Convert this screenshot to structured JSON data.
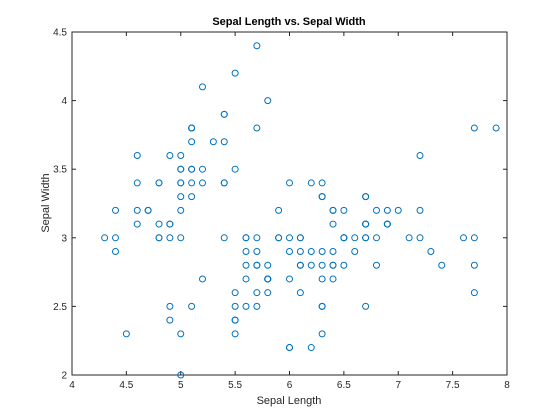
{
  "chart_data": {
    "type": "scatter",
    "title": "Sepal Length vs. Sepal Width",
    "xlabel": "Sepal Length",
    "ylabel": "Sepal Width",
    "xlim": [
      4,
      8
    ],
    "ylim": [
      2,
      4.5
    ],
    "xticks": [
      "4",
      "4.5",
      "5",
      "5.5",
      "6",
      "6.5",
      "7",
      "7.5",
      "8"
    ],
    "yticks": [
      "2",
      "2.5",
      "3",
      "3.5",
      "4",
      "4.5"
    ],
    "grid": false,
    "marker_color": "#0072BD",
    "points": [
      [
        5.1,
        3.5
      ],
      [
        4.9,
        3.0
      ],
      [
        4.7,
        3.2
      ],
      [
        4.6,
        3.1
      ],
      [
        5.0,
        3.6
      ],
      [
        5.4,
        3.9
      ],
      [
        4.6,
        3.4
      ],
      [
        5.0,
        3.4
      ],
      [
        4.4,
        2.9
      ],
      [
        4.9,
        3.1
      ],
      [
        5.4,
        3.7
      ],
      [
        4.8,
        3.4
      ],
      [
        4.8,
        3.0
      ],
      [
        4.3,
        3.0
      ],
      [
        5.8,
        4.0
      ],
      [
        5.7,
        4.4
      ],
      [
        5.4,
        3.9
      ],
      [
        5.1,
        3.5
      ],
      [
        5.7,
        3.8
      ],
      [
        5.1,
        3.8
      ],
      [
        5.4,
        3.4
      ],
      [
        5.1,
        3.7
      ],
      [
        4.6,
        3.6
      ],
      [
        5.1,
        3.3
      ],
      [
        4.8,
        3.4
      ],
      [
        5.0,
        3.0
      ],
      [
        5.0,
        3.4
      ],
      [
        5.2,
        3.5
      ],
      [
        5.2,
        3.4
      ],
      [
        4.7,
        3.2
      ],
      [
        4.8,
        3.1
      ],
      [
        5.4,
        3.4
      ],
      [
        5.2,
        4.1
      ],
      [
        5.5,
        4.2
      ],
      [
        4.9,
        3.1
      ],
      [
        5.0,
        3.2
      ],
      [
        5.5,
        3.5
      ],
      [
        4.9,
        3.6
      ],
      [
        4.4,
        3.0
      ],
      [
        5.1,
        3.4
      ],
      [
        5.0,
        3.5
      ],
      [
        4.5,
        2.3
      ],
      [
        4.4,
        3.2
      ],
      [
        5.0,
        3.5
      ],
      [
        5.1,
        3.8
      ],
      [
        4.8,
        3.0
      ],
      [
        5.1,
        3.8
      ],
      [
        4.6,
        3.2
      ],
      [
        5.3,
        3.7
      ],
      [
        5.0,
        3.3
      ],
      [
        7.0,
        3.2
      ],
      [
        6.4,
        3.2
      ],
      [
        6.9,
        3.1
      ],
      [
        5.5,
        2.3
      ],
      [
        6.5,
        2.8
      ],
      [
        5.7,
        2.8
      ],
      [
        6.3,
        3.3
      ],
      [
        4.9,
        2.4
      ],
      [
        6.6,
        2.9
      ],
      [
        5.2,
        2.7
      ],
      [
        5.0,
        2.0
      ],
      [
        5.9,
        3.0
      ],
      [
        6.0,
        2.2
      ],
      [
        6.1,
        2.9
      ],
      [
        5.6,
        2.9
      ],
      [
        6.7,
        3.1
      ],
      [
        5.6,
        3.0
      ],
      [
        5.8,
        2.7
      ],
      [
        6.2,
        2.2
      ],
      [
        5.6,
        2.5
      ],
      [
        5.9,
        3.2
      ],
      [
        6.1,
        2.8
      ],
      [
        6.3,
        2.5
      ],
      [
        6.1,
        2.8
      ],
      [
        6.4,
        2.9
      ],
      [
        6.6,
        3.0
      ],
      [
        6.8,
        2.8
      ],
      [
        6.7,
        3.0
      ],
      [
        6.0,
        2.9
      ],
      [
        5.7,
        2.6
      ],
      [
        5.5,
        2.4
      ],
      [
        5.5,
        2.4
      ],
      [
        5.8,
        2.7
      ],
      [
        6.0,
        2.7
      ],
      [
        5.4,
        3.0
      ],
      [
        6.0,
        3.4
      ],
      [
        6.7,
        3.1
      ],
      [
        6.3,
        2.3
      ],
      [
        5.6,
        3.0
      ],
      [
        5.5,
        2.5
      ],
      [
        5.5,
        2.6
      ],
      [
        6.1,
        3.0
      ],
      [
        5.8,
        2.6
      ],
      [
        5.0,
        2.3
      ],
      [
        5.6,
        2.7
      ],
      [
        5.7,
        3.0
      ],
      [
        5.7,
        2.9
      ],
      [
        6.2,
        2.9
      ],
      [
        5.1,
        2.5
      ],
      [
        5.7,
        2.8
      ],
      [
        6.3,
        3.3
      ],
      [
        5.8,
        2.7
      ],
      [
        7.1,
        3.0
      ],
      [
        6.3,
        2.9
      ],
      [
        6.5,
        3.0
      ],
      [
        7.6,
        3.0
      ],
      [
        4.9,
        2.5
      ],
      [
        7.3,
        2.9
      ],
      [
        6.7,
        2.5
      ],
      [
        7.2,
        3.6
      ],
      [
        6.5,
        3.2
      ],
      [
        6.4,
        2.7
      ],
      [
        6.8,
        3.0
      ],
      [
        5.7,
        2.5
      ],
      [
        5.8,
        2.8
      ],
      [
        6.4,
        3.2
      ],
      [
        6.5,
        3.0
      ],
      [
        7.7,
        3.8
      ],
      [
        7.7,
        2.6
      ],
      [
        6.0,
        2.2
      ],
      [
        6.9,
        3.2
      ],
      [
        5.6,
        2.8
      ],
      [
        7.7,
        2.8
      ],
      [
        6.3,
        2.7
      ],
      [
        6.7,
        3.3
      ],
      [
        7.2,
        3.2
      ],
      [
        6.2,
        2.8
      ],
      [
        6.1,
        3.0
      ],
      [
        6.4,
        2.8
      ],
      [
        7.2,
        3.0
      ],
      [
        7.4,
        2.8
      ],
      [
        7.9,
        3.8
      ],
      [
        6.4,
        2.8
      ],
      [
        6.3,
        2.8
      ],
      [
        6.1,
        2.6
      ],
      [
        7.7,
        3.0
      ],
      [
        6.3,
        3.4
      ],
      [
        6.4,
        3.1
      ],
      [
        6.0,
        3.0
      ],
      [
        6.9,
        3.1
      ],
      [
        6.7,
        3.1
      ],
      [
        6.9,
        3.1
      ],
      [
        5.8,
        2.7
      ],
      [
        6.8,
        3.2
      ],
      [
        6.7,
        3.3
      ],
      [
        6.7,
        3.0
      ],
      [
        6.3,
        2.5
      ],
      [
        6.5,
        3.0
      ],
      [
        6.2,
        3.4
      ],
      [
        5.9,
        3.0
      ]
    ]
  }
}
